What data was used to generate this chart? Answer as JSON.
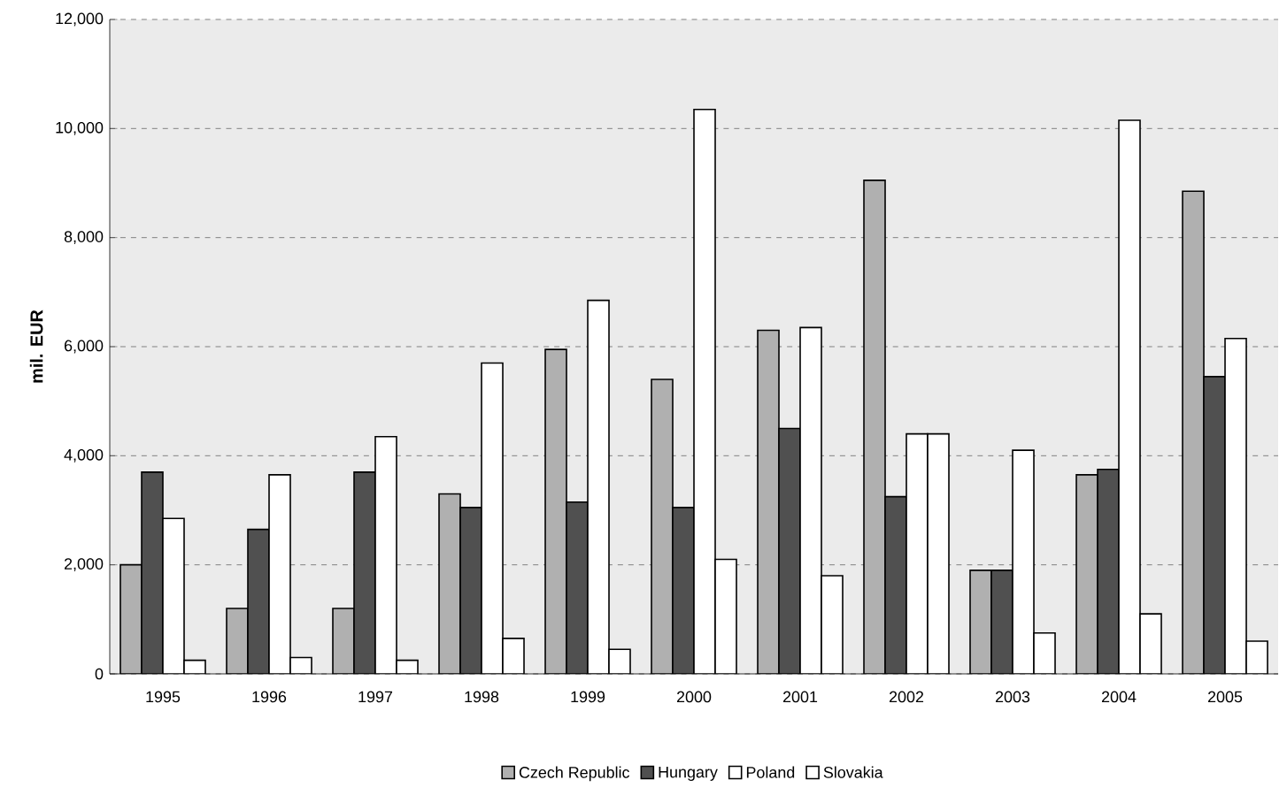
{
  "chart_data": {
    "type": "bar",
    "ylabel": "mil. EUR",
    "categories": [
      "1995",
      "1996",
      "1997",
      "1998",
      "1999",
      "2000",
      "2001",
      "2002",
      "2003",
      "2004",
      "2005"
    ],
    "series": [
      {
        "name": "Czech Republic",
        "color": "#b0b0b0",
        "values": [
          2000,
          1200,
          1200,
          3300,
          5950,
          5400,
          6300,
          9050,
          1900,
          3650,
          8850
        ]
      },
      {
        "name": "Hungary",
        "color": "#505050",
        "values": [
          3700,
          2650,
          3700,
          3050,
          3150,
          3050,
          4500,
          3250,
          1900,
          3750,
          5450
        ]
      },
      {
        "name": "Poland",
        "color": "#ffffff",
        "values": [
          2850,
          3650,
          4350,
          5700,
          6850,
          10350,
          6350,
          4400,
          4100,
          10150,
          6150
        ]
      },
      {
        "name": "Slovakia",
        "color": "#ffffff",
        "values": [
          250,
          300,
          250,
          650,
          450,
          2100,
          1800,
          4400,
          750,
          1100,
          600
        ]
      }
    ],
    "ylim": [
      0,
      12000
    ],
    "yticks": [
      0,
      {
        "value": 2000,
        "label": "2,000"
      },
      {
        "value": 4000,
        "label": "4,000"
      },
      {
        "value": 6000,
        "label": "6,000"
      },
      {
        "value": 8000,
        "label": "8,000"
      },
      {
        "value": 10000,
        "label": "10,000"
      },
      {
        "value": 12000,
        "label": "12,000"
      }
    ],
    "grid": "y",
    "legend": "bottom"
  }
}
